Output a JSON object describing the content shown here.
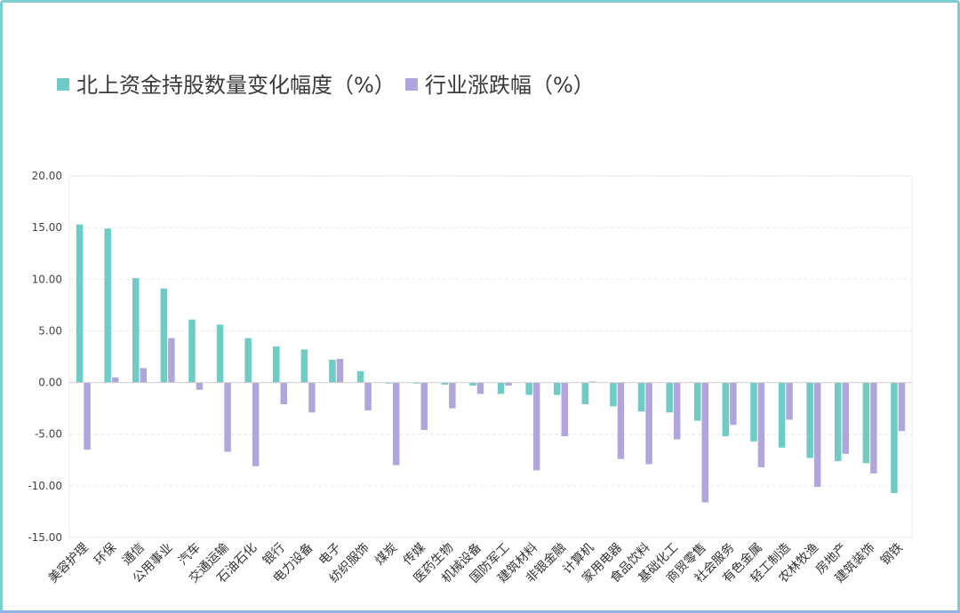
{
  "chart_data": {
    "type": "bar",
    "title": "",
    "xlabel": "",
    "ylabel": "",
    "ylim": [
      -15,
      20
    ],
    "yticks": [
      "20.00",
      "15.00",
      "10.00",
      "5.00",
      "0.00",
      "-5.00",
      "-10.00",
      "-15.00"
    ],
    "grid": true,
    "legend_position": "top-left",
    "categories": [
      "美容护理",
      "环保",
      "通信",
      "公用事业",
      "汽车",
      "交通运输",
      "石油石化",
      "银行",
      "电力设备",
      "电子",
      "纺织服饰",
      "煤炭",
      "传媒",
      "医药生物",
      "机械设备",
      "国防军工",
      "建筑材料",
      "非银金融",
      "计算机",
      "家用电器",
      "食品饮料",
      "基础化工",
      "商贸零售",
      "社会服务",
      "有色金属",
      "轻工制造",
      "农林牧渔",
      "房地产",
      "建筑装饰",
      "钢铁"
    ],
    "series": [
      {
        "name": "北上资金持股数量变化幅度（%）",
        "color": "#6ecbc5",
        "values": [
          15.3,
          14.9,
          10.1,
          9.1,
          6.1,
          5.6,
          4.3,
          3.5,
          3.2,
          2.2,
          1.1,
          -0.1,
          -0.1,
          -0.2,
          -0.3,
          -1.1,
          -1.2,
          -1.2,
          -2.1,
          -2.3,
          -2.8,
          -2.9,
          -3.7,
          -5.2,
          -5.7,
          -6.3,
          -7.3,
          -7.6,
          -7.8,
          -10.7
        ]
      },
      {
        "name": "行业涨跌幅（%）",
        "color": "#b1a5dc",
        "values": [
          -6.5,
          0.5,
          1.4,
          4.3,
          -0.7,
          -6.7,
          -8.1,
          -2.1,
          -2.9,
          2.3,
          -2.7,
          -8.0,
          -4.6,
          -2.5,
          -1.1,
          -0.3,
          -8.5,
          -5.2,
          0.1,
          -7.4,
          -7.9,
          -5.5,
          -11.6,
          -4.1,
          -8.2,
          -3.6,
          -10.1,
          -6.9,
          -8.8,
          -4.7
        ]
      }
    ]
  }
}
